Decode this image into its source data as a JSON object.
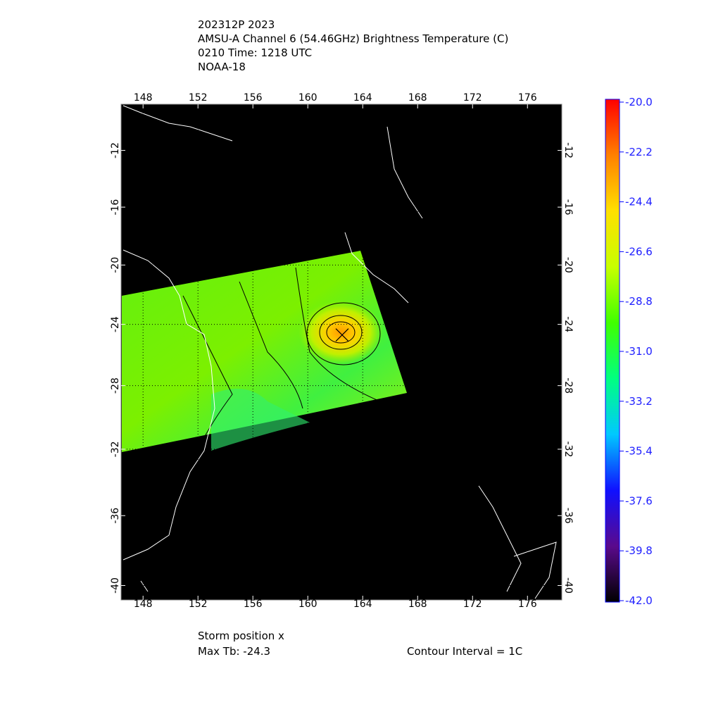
{
  "header": {
    "lines": [
      "202312P 2023",
      "AMSU-A Channel 6 (54.46GHz) Brightness Temperature (C)",
      "0210 Time: 1218 UTC",
      "NOAA-18"
    ]
  },
  "map": {
    "xlim": [
      146.4,
      178.5
    ],
    "ylim": [
      -8.7,
      -40.8
    ],
    "xticks": [
      148,
      152,
      156,
      160,
      164,
      168,
      172,
      176
    ],
    "yticks": [
      -12,
      -16,
      -20,
      -24,
      -28,
      -32,
      -36,
      -40
    ],
    "grid": true
  },
  "storm": {
    "lon": 162.5,
    "lat": -24.7
  },
  "colorbar": {
    "lim": [
      -42,
      -20
    ],
    "colors": [
      "#000000",
      "#5a0a8c",
      "#1010ff",
      "#00c8ff",
      "#00ff80",
      "#40ff00",
      "#c8ff00",
      "#ffe000",
      "#ff8000",
      "#ff0000"
    ],
    "ticks": [
      {
        "value": -20,
        "label": "-20.0"
      },
      -22.2,
      -24.4,
      -26.6,
      -28.8,
      {
        "value": -31,
        "label": "-31.0"
      },
      -33.2,
      -35.4,
      -37.6,
      -39.8,
      {
        "value": -42,
        "label": "-42.0"
      }
    ]
  },
  "footer": {
    "storm_label": "Storm position x",
    "max_tb": "Max Tb: -24.3",
    "contour": "Contour Interval = 1C"
  }
}
